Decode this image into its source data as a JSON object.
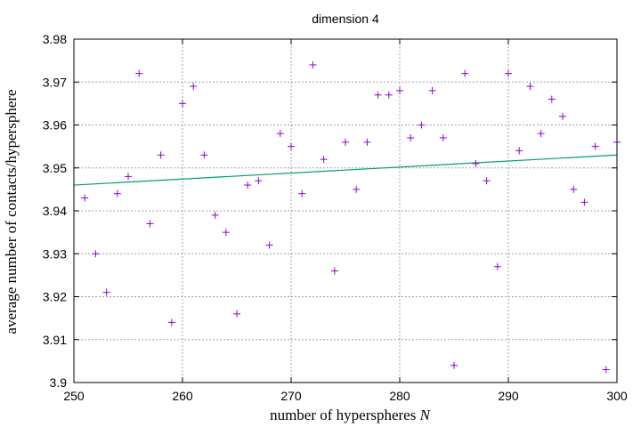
{
  "chart_data": {
    "type": "scatter",
    "title": "dimension 4",
    "xlabel_main": "number of hyperspheres ",
    "xlabel_var": "N",
    "ylabel": "average number of contacts/hypersphere",
    "xlim": [
      250,
      300
    ],
    "ylim": [
      3.9,
      3.98
    ],
    "x_ticks": [
      "250",
      "260",
      "270",
      "280",
      "290",
      "300"
    ],
    "y_ticks": [
      "3.9",
      "3.91",
      "3.92",
      "3.93",
      "3.94",
      "3.95",
      "3.96",
      "3.97",
      "3.98"
    ],
    "grid": true,
    "series": [
      {
        "marker": "+",
        "color": "#9400d3",
        "points": [
          [
            251,
            3.943
          ],
          [
            252,
            3.93
          ],
          [
            253,
            3.921
          ],
          [
            254,
            3.944
          ],
          [
            255,
            3.948
          ],
          [
            256,
            3.972
          ],
          [
            257,
            3.937
          ],
          [
            258,
            3.953
          ],
          [
            259,
            3.914
          ],
          [
            260,
            3.965
          ],
          [
            261,
            3.969
          ],
          [
            262,
            3.953
          ],
          [
            263,
            3.939
          ],
          [
            264,
            3.935
          ],
          [
            265,
            3.916
          ],
          [
            266,
            3.946
          ],
          [
            267,
            3.947
          ],
          [
            268,
            3.932
          ],
          [
            269,
            3.958
          ],
          [
            270,
            3.955
          ],
          [
            271,
            3.944
          ],
          [
            272,
            3.974
          ],
          [
            273,
            3.952
          ],
          [
            274,
            3.926
          ],
          [
            275,
            3.956
          ],
          [
            276,
            3.945
          ],
          [
            277,
            3.956
          ],
          [
            278,
            3.967
          ],
          [
            279,
            3.967
          ],
          [
            280,
            3.968
          ],
          [
            281,
            3.957
          ],
          [
            282,
            3.96
          ],
          [
            283,
            3.968
          ],
          [
            284,
            3.957
          ],
          [
            285,
            3.904
          ],
          [
            286,
            3.972
          ],
          [
            287,
            3.951
          ],
          [
            288,
            3.947
          ],
          [
            289,
            3.927
          ],
          [
            290,
            3.972
          ],
          [
            291,
            3.954
          ],
          [
            292,
            3.969
          ],
          [
            293,
            3.958
          ],
          [
            294,
            3.966
          ],
          [
            295,
            3.962
          ],
          [
            296,
            3.945
          ],
          [
            297,
            3.942
          ],
          [
            298,
            3.955
          ],
          [
            299,
            3.903
          ],
          [
            300,
            3.956
          ]
        ]
      },
      {
        "type": "line",
        "color": "#009e73",
        "points": [
          [
            250,
            3.946
          ],
          [
            300,
            3.953
          ]
        ]
      }
    ]
  }
}
